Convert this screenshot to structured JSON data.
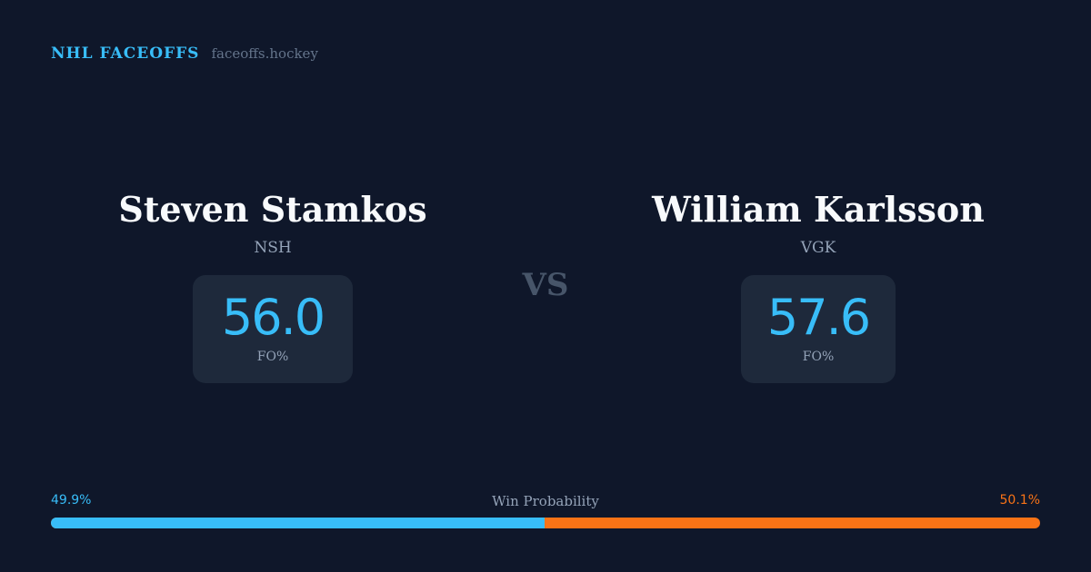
{
  "brand": {
    "title": "NHL FACEOFFS",
    "url": "faceoffs.hockey"
  },
  "players": [
    {
      "name": "Steven Stamkos",
      "team": "NSH",
      "fo_pct": "56.0",
      "fo_label": "FO%"
    },
    {
      "name": "William Karlsson",
      "team": "VGK",
      "fo_pct": "57.6",
      "fo_label": "FO%"
    }
  ],
  "vs": "VS",
  "win_probability": {
    "label": "Win Probability",
    "left": "49.9%",
    "right": "50.1%",
    "left_fraction": 0.499,
    "colors": {
      "left": "#38bdf8",
      "right": "#f97316"
    }
  }
}
